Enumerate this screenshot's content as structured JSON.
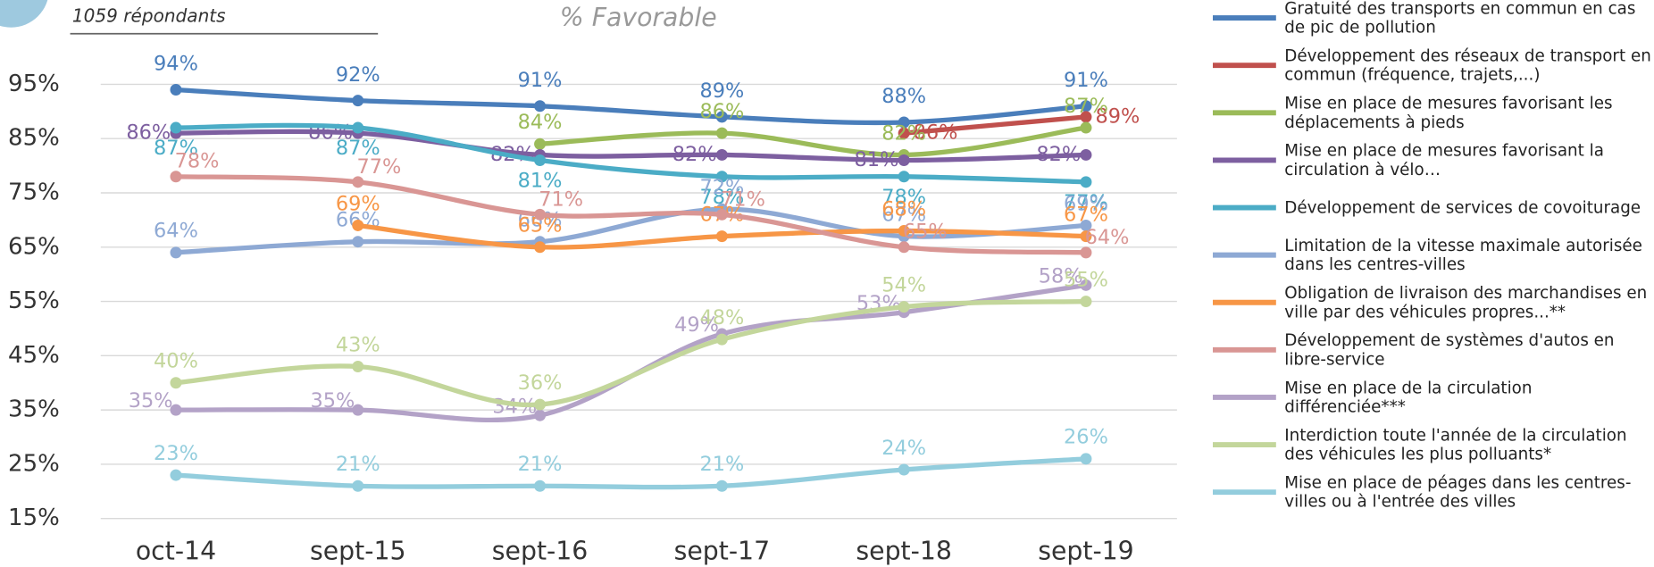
{
  "chart_data": {
    "type": "line",
    "subtitle": "1059 répondants",
    "title": "% Favorable",
    "categories": [
      "oct-14",
      "sept-15",
      "sept-16",
      "sept-17",
      "sept-18",
      "sept-19"
    ],
    "ylim": [
      15,
      95
    ],
    "yticks": [
      {
        "value": 15,
        "label": "15%"
      },
      {
        "value": 25,
        "label": "25%"
      },
      {
        "value": 35,
        "label": "35%"
      },
      {
        "value": 45,
        "label": "45%"
      },
      {
        "value": 55,
        "label": "55%"
      },
      {
        "value": 65,
        "label": "65%"
      },
      {
        "value": 75,
        "label": "75%"
      },
      {
        "value": 85,
        "label": "85%"
      },
      {
        "value": 95,
        "label": "95%"
      }
    ],
    "grid": true,
    "legend": "right",
    "series": [
      {
        "name": "Gratuité des transports en commun en cas de pic de pollution",
        "color": "#4a7ebb",
        "values": [
          94,
          92,
          91,
          89,
          88,
          91
        ],
        "value_labels": [
          "94%",
          "92%",
          "91%",
          "89%",
          "88%",
          "91%"
        ]
      },
      {
        "name": "Développement des réseaux de transport en commun (fréquence, trajets,...)",
        "color": "#c0504d",
        "values": [
          null,
          null,
          null,
          null,
          86,
          89
        ],
        "value_labels": [
          null,
          null,
          null,
          null,
          "86%",
          "89%"
        ]
      },
      {
        "name": "Mise en place de mesures favorisant les déplacements à pieds",
        "color": "#9bbb59",
        "values": [
          null,
          null,
          84,
          86,
          82,
          87
        ],
        "value_labels": [
          null,
          null,
          "84%",
          "86%",
          "82%",
          "87%"
        ]
      },
      {
        "name": "Mise en place de mesures favorisant la circulation à vélo…",
        "color": "#7d5fa0",
        "values": [
          86,
          86,
          82,
          82,
          81,
          82
        ],
        "value_labels": [
          "86%",
          "86%",
          "82%",
          "82%",
          "81%",
          "82%"
        ]
      },
      {
        "name": "Développement de services de covoiturage",
        "color": "#4bacc6",
        "values": [
          87,
          87,
          81,
          78,
          78,
          77
        ],
        "value_labels": [
          "87%",
          "87%",
          "81%",
          "78%",
          "78%",
          "77%"
        ]
      },
      {
        "name": "Limitation de la vitesse maximale autorisée dans les centres-villes",
        "color": "#8ea9d4",
        "values": [
          64,
          66,
          66,
          72,
          67,
          69
        ],
        "value_labels": [
          "64%",
          "66%",
          "66%",
          "72%",
          "67%",
          "69%"
        ]
      },
      {
        "name": "Obligation de livraison des marchandises en ville par des véhicules propres...**",
        "color": "#f79646",
        "values": [
          null,
          69,
          65,
          67,
          68,
          67
        ],
        "value_labels": [
          null,
          "69%",
          "65%",
          "67%",
          "68%",
          "67%"
        ]
      },
      {
        "name": "Développement de systèmes d'autos en libre-service",
        "color": "#d99694",
        "values": [
          78,
          77,
          71,
          71,
          65,
          64
        ],
        "value_labels": [
          "78%",
          "77%",
          "71%",
          "71%",
          "65%",
          "64%"
        ]
      },
      {
        "name": "Mise en place de la circulation différenciée***",
        "color": "#b3a2c7",
        "values": [
          35,
          35,
          34,
          49,
          53,
          58
        ],
        "value_labels": [
          "35%",
          "35%",
          "34%",
          "49%",
          "53%",
          "58%"
        ]
      },
      {
        "name": "Interdiction toute l'année de la circulation des véhicules les plus polluants*",
        "color": "#c3d69b",
        "values": [
          40,
          43,
          36,
          48,
          54,
          55
        ],
        "value_labels": [
          "40%",
          "43%",
          "36%",
          "48%",
          "54%",
          "55%"
        ]
      },
      {
        "name": "Mise en place de péages dans les centres-villes ou à l'entrée des villes",
        "color": "#93cddd",
        "values": [
          23,
          21,
          21,
          21,
          24,
          26
        ],
        "value_labels": [
          "23%",
          "21%",
          "21%",
          "21%",
          "24%",
          "26%"
        ]
      }
    ]
  }
}
